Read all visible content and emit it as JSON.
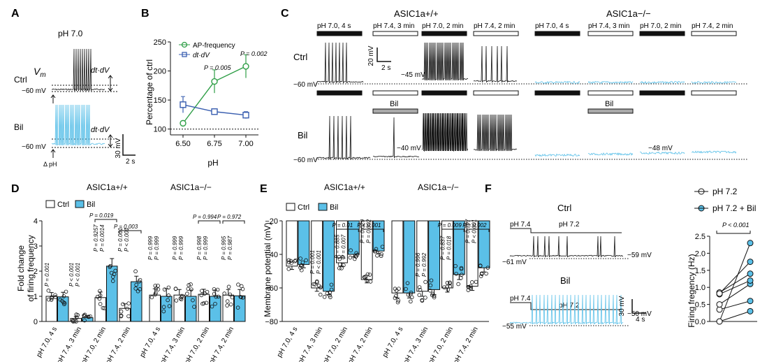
{
  "panels": {
    "A": {
      "letter": "A",
      "condition": "pH 7.0",
      "rows": [
        "Ctrl",
        "Bil"
      ],
      "vm_label": "V",
      "vm_sub": "m",
      "dtdv": "dt·dV",
      "vlevel": "−60 mV",
      "stim": "Δ pH",
      "scale_v": "30 mV",
      "scale_t": "2 s"
    },
    "B": {
      "letter": "B",
      "xlabel": "pH",
      "ylabel": "Percentage of ctrl",
      "legend": [
        "AP-frequency",
        "dt·dV"
      ],
      "pvals": [
        "P = 0.005",
        "P = 0.002"
      ]
    },
    "C": {
      "letter": "C",
      "groups": [
        "ASIC1a+/+",
        "ASIC1a−/−"
      ],
      "labels": [
        "pH 7.0, 4 s",
        "pH 7.4, 3 min",
        "pH 7.0, 2 min",
        "pH 7.4, 2 min"
      ],
      "rows": [
        "Ctrl",
        "Bil"
      ],
      "bil_bar": "Bil",
      "voltages": [
        "−45 mV",
        "−60 mV",
        "−40 mV",
        "−48 mV",
        "−60 mV"
      ],
      "scale_v": "20 mV",
      "scale_t": "2 s"
    },
    "D": {
      "letter": "D",
      "groups": [
        "ASIC1a+/+",
        "ASIC1a−/−"
      ],
      "legend": [
        "Ctrl",
        "Bil"
      ],
      "ylabel": [
        "Fold change",
        "of firing frequency"
      ],
      "xticks": [
        "pH 7.0, 4 s",
        "pH 7.4, 3 min",
        "pH 7.0, 2 min",
        "pH 7.4, 2 min"
      ],
      "bracket_p": [
        "P = 0.019",
        "P = 0.003",
        "P = 0.994",
        "P = 0.972"
      ],
      "p_wt": [
        [
          "P = 0.001"
        ],
        [
          "P < 0.001",
          "P < 0.001"
        ],
        [
          "P = 0.9257",
          "P = 0.0014"
        ],
        [
          "P = 0.001",
          "P < 0.001"
        ]
      ],
      "p_ko": [
        [
          "P = 0.999",
          "P = 0.999"
        ],
        [
          "P = 0.999",
          "P = 0.999"
        ],
        [
          "P = 0.998",
          "P = 0.999"
        ],
        [
          "P = 0.995",
          "P = 0.987"
        ]
      ]
    },
    "E": {
      "letter": "E",
      "groups": [
        "ASIC1a+/+",
        "ASIC1a−/−"
      ],
      "legend": [
        "Ctrl",
        "Bil"
      ],
      "ylabel": "Membrane potential (mV)",
      "xticks": [
        "pH 7.0, 4 s",
        "pH 7.4, 3 min",
        "pH 7.0, 2 min",
        "pH 7.4, 2 min"
      ],
      "bracket_p": [
        "P = 0.01",
        "P < 0.001",
        "P = 0.009",
        "P = 0.002"
      ],
      "p_wt": [
        [
          "P = 0.001",
          "P < 0.001"
        ],
        [
          "P = 0.885",
          "P = 0.007"
        ],
        [
          "P = 0.029",
          "P = 0.002"
        ]
      ],
      "p_ko": [
        [
          "P = 0.996",
          "P = 0.992"
        ],
        [
          "P = 0.837",
          "P = 0.018"
        ],
        [
          "P = 0.797",
          "P < 0.001"
        ]
      ]
    },
    "F": {
      "letter": "F",
      "rows": [
        "Ctrl",
        "Bil"
      ],
      "steps": [
        "pH 7.4",
        "pH 7.2"
      ],
      "voltages": [
        "−61 mV",
        "−59 mV",
        "−55 mV",
        "−50 mV"
      ],
      "scale_v": "30 mV",
      "scale_t": "4 s",
      "legend": [
        "pH 7.2",
        "pH 7.2 + Bil"
      ],
      "ylabel": "Firing fregency (Hz)",
      "pval": "P < 0.001"
    }
  },
  "colors": {
    "cyan": "#5bc0e8",
    "green": "#2e9e46",
    "blue": "#3a5fb0",
    "black": "#111111"
  },
  "chart_data": [
    {
      "type": "line",
      "panel": "B",
      "x": [
        6.5,
        6.75,
        7.0
      ],
      "xticks": [
        "6.50",
        "6.75",
        "7.00"
      ],
      "xlim": [
        6.4,
        7.1
      ],
      "ylim": [
        90,
        250
      ],
      "yticks": [
        100,
        150,
        200,
        250
      ],
      "reference_line": 100,
      "series": [
        {
          "name": "AP-frequency",
          "values": [
            110,
            182,
            208
          ],
          "err": [
            4,
            20,
            20
          ],
          "color": "#2e9e46",
          "marker": "circle"
        },
        {
          "name": "dt·dV",
          "values": [
            142,
            130,
            124
          ],
          "err": [
            14,
            5,
            6
          ],
          "color": "#3a5fb0",
          "marker": "square"
        }
      ]
    },
    {
      "type": "bar",
      "panel": "D",
      "categories": [
        "pH 7.0, 4 s",
        "pH 7.4, 3 min",
        "pH 7.0, 2 min",
        "pH 7.4, 2 min"
      ],
      "ylim": [
        0,
        4
      ],
      "yticks": [
        0,
        1,
        2,
        3,
        4
      ],
      "groups": [
        {
          "name": "ASIC1a+/+",
          "series": [
            {
              "name": "Ctrl",
              "values": [
                1.0,
                0.12,
                0.95,
                0.52
              ],
              "err": [
                0.15,
                0.08,
                0.22,
                0.18
              ]
            },
            {
              "name": "Bil",
              "values": [
                0.98,
                0.15,
                2.2,
                1.58
              ],
              "err": [
                0.18,
                0.07,
                0.3,
                0.22
              ]
            }
          ]
        },
        {
          "name": "ASIC1a−/−",
          "series": [
            {
              "name": "Ctrl",
              "values": [
                1.05,
                1.05,
                1.08,
                1.05
              ],
              "err": [
                0.25,
                0.22,
                0.2,
                0.22
              ]
            },
            {
              "name": "Bil",
              "values": [
                1.0,
                1.0,
                1.0,
                1.02
              ],
              "err": [
                0.3,
                0.25,
                0.25,
                0.25
              ]
            }
          ]
        }
      ]
    },
    {
      "type": "bar",
      "panel": "E",
      "categories": [
        "pH 7.0, 4 s",
        "pH 7.4, 3 min",
        "pH 7.0, 2 min",
        "pH 7.4, 2 min"
      ],
      "ylim": [
        -80,
        -20
      ],
      "yticks": [
        -20,
        -40,
        -60,
        -80
      ],
      "groups": [
        {
          "name": "ASIC1a+/+",
          "series": [
            {
              "name": "Ctrl",
              "values": [
                -47,
                -60,
                -45,
                -55
              ],
              "err": [
                2,
                2,
                2,
                2
              ]
            },
            {
              "name": "Bil",
              "values": [
                -46,
                -62,
                -40,
                -38
              ],
              "err": [
                2,
                2,
                1.5,
                1.5
              ]
            }
          ]
        },
        {
          "name": "ASIC1a−/−",
          "series": [
            {
              "name": "Ctrl",
              "values": [
                -63,
                -62,
                -60,
                -59
              ],
              "err": [
                3,
                3,
                2.5,
                2.5
              ]
            },
            {
              "name": "Bil",
              "values": [
                -63,
                -61,
                -52,
                -48
              ],
              "err": [
                3,
                3,
                3,
                2.5
              ]
            }
          ]
        }
      ]
    },
    {
      "type": "line",
      "panel": "F",
      "categories": [
        "pH 7.2",
        "pH 7.2 + Bil"
      ],
      "ylim": [
        0,
        2.5
      ],
      "yticks": [
        0.0,
        0.5,
        1.0,
        1.5,
        2.0,
        2.5
      ],
      "pairs": [
        [
          0.0,
          0.3
        ],
        [
          0.35,
          0.6
        ],
        [
          0.5,
          1.1
        ],
        [
          0.8,
          1.2
        ],
        [
          0.85,
          1.4
        ],
        [
          0.82,
          1.75
        ],
        [
          0.0,
          2.3
        ]
      ]
    }
  ]
}
